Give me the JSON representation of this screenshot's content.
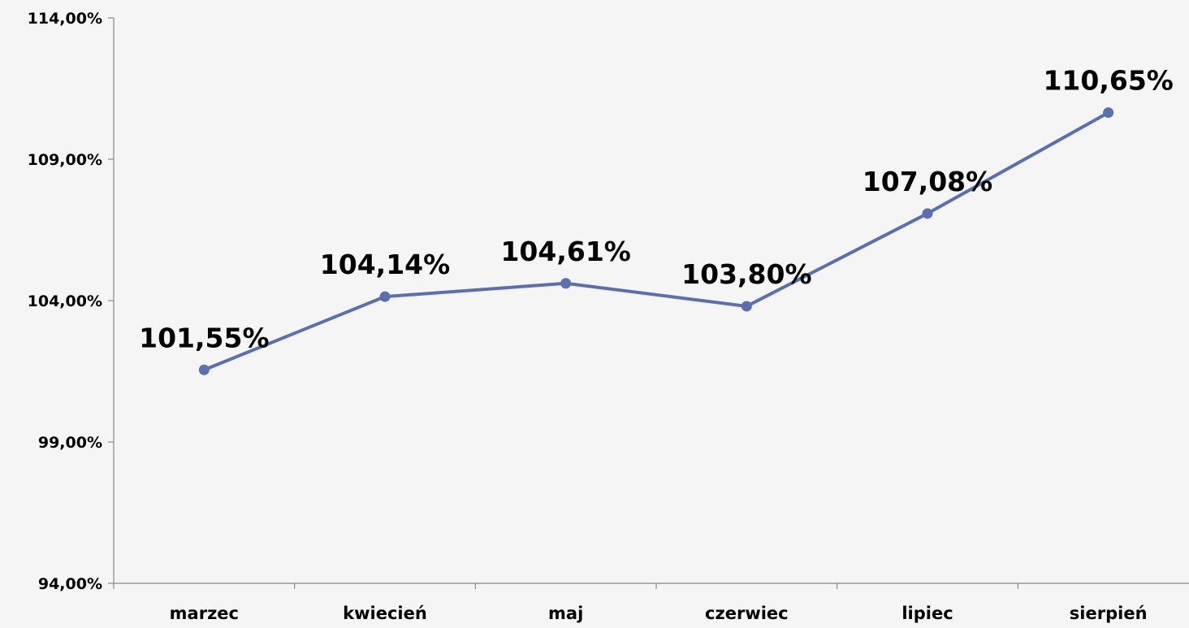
{
  "chart_data": {
    "type": "line",
    "categories": [
      "marzec",
      "kwiecień",
      "maj",
      "czerwiec",
      "lipiec",
      "sierpień"
    ],
    "series": [
      {
        "values": [
          101.55,
          104.14,
          104.61,
          103.8,
          107.08,
          110.65
        ],
        "data_labels": [
          "101,55%",
          "104,14%",
          "104,61%",
          "103,80%",
          "107,08%",
          "110,65%"
        ],
        "color": "#5b6fb0"
      }
    ],
    "ylim": [
      94,
      114
    ],
    "y_ticks": [
      94,
      99,
      104,
      109,
      114
    ],
    "y_tick_labels": [
      "94,00%",
      "99,00%",
      "104,00%",
      "109,00%",
      "114,00%"
    ],
    "grid": false,
    "legend": "none",
    "title": "",
    "xlabel": "",
    "ylabel": ""
  },
  "colors": {
    "background": "#f5f5f5",
    "axis": "#888888",
    "line": "#5b6fb0",
    "text": "#000000"
  }
}
